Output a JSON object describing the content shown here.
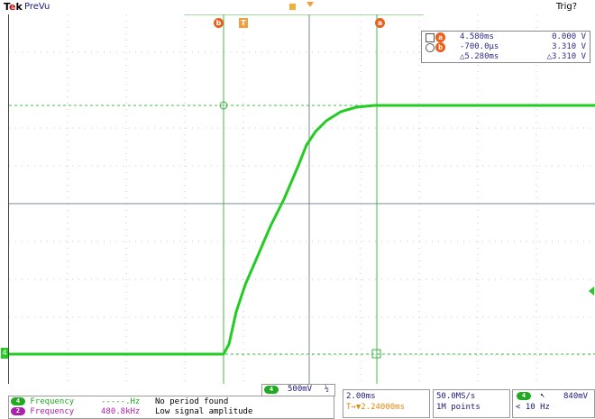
{
  "top": {
    "brand_prefix": "T",
    "brand_e": "e",
    "brand_suffix": "k",
    "acq_status": "PreVu",
    "trigger_status": "Trig?"
  },
  "cursors": {
    "a_label": "a",
    "b_label": "b",
    "trigger_marker": "T"
  },
  "readout": {
    "row1": {
      "col1": "4.580ms",
      "col2": "0.000 V"
    },
    "row2": {
      "col1": "-700.0µs",
      "col2": "3.310 V"
    },
    "row3": {
      "col1": "△5.280ms",
      "col2": "△3.310 V"
    }
  },
  "channel": {
    "number": "4",
    "scale": "500mV",
    "coupling": "½",
    "color": "#22cc22"
  },
  "measurements": [
    {
      "channel": "4",
      "name": "Frequency",
      "value": "-----.Hz",
      "note": "No period found",
      "color": "#22aa22"
    },
    {
      "channel": "2",
      "name": "Frequency",
      "value": "480.8kHz",
      "note": "Low signal amplitude",
      "color": "#aa22aa"
    }
  ],
  "timebase": {
    "scale": "2.00ms",
    "trigger_pos": "T→▼2.24000ms"
  },
  "acquisition": {
    "rate": "50.0MS/s",
    "points": "1M points"
  },
  "trigger": {
    "channel": "4",
    "slope_icon": "rising-edge-icon",
    "level": "840mV",
    "freq": "< 10 Hz"
  },
  "waveform": {
    "baseline_volts": 0.0,
    "plateau_volts": 3.31,
    "rise_start_ms": -0.7,
    "rise_end_ms": 4.58
  }
}
